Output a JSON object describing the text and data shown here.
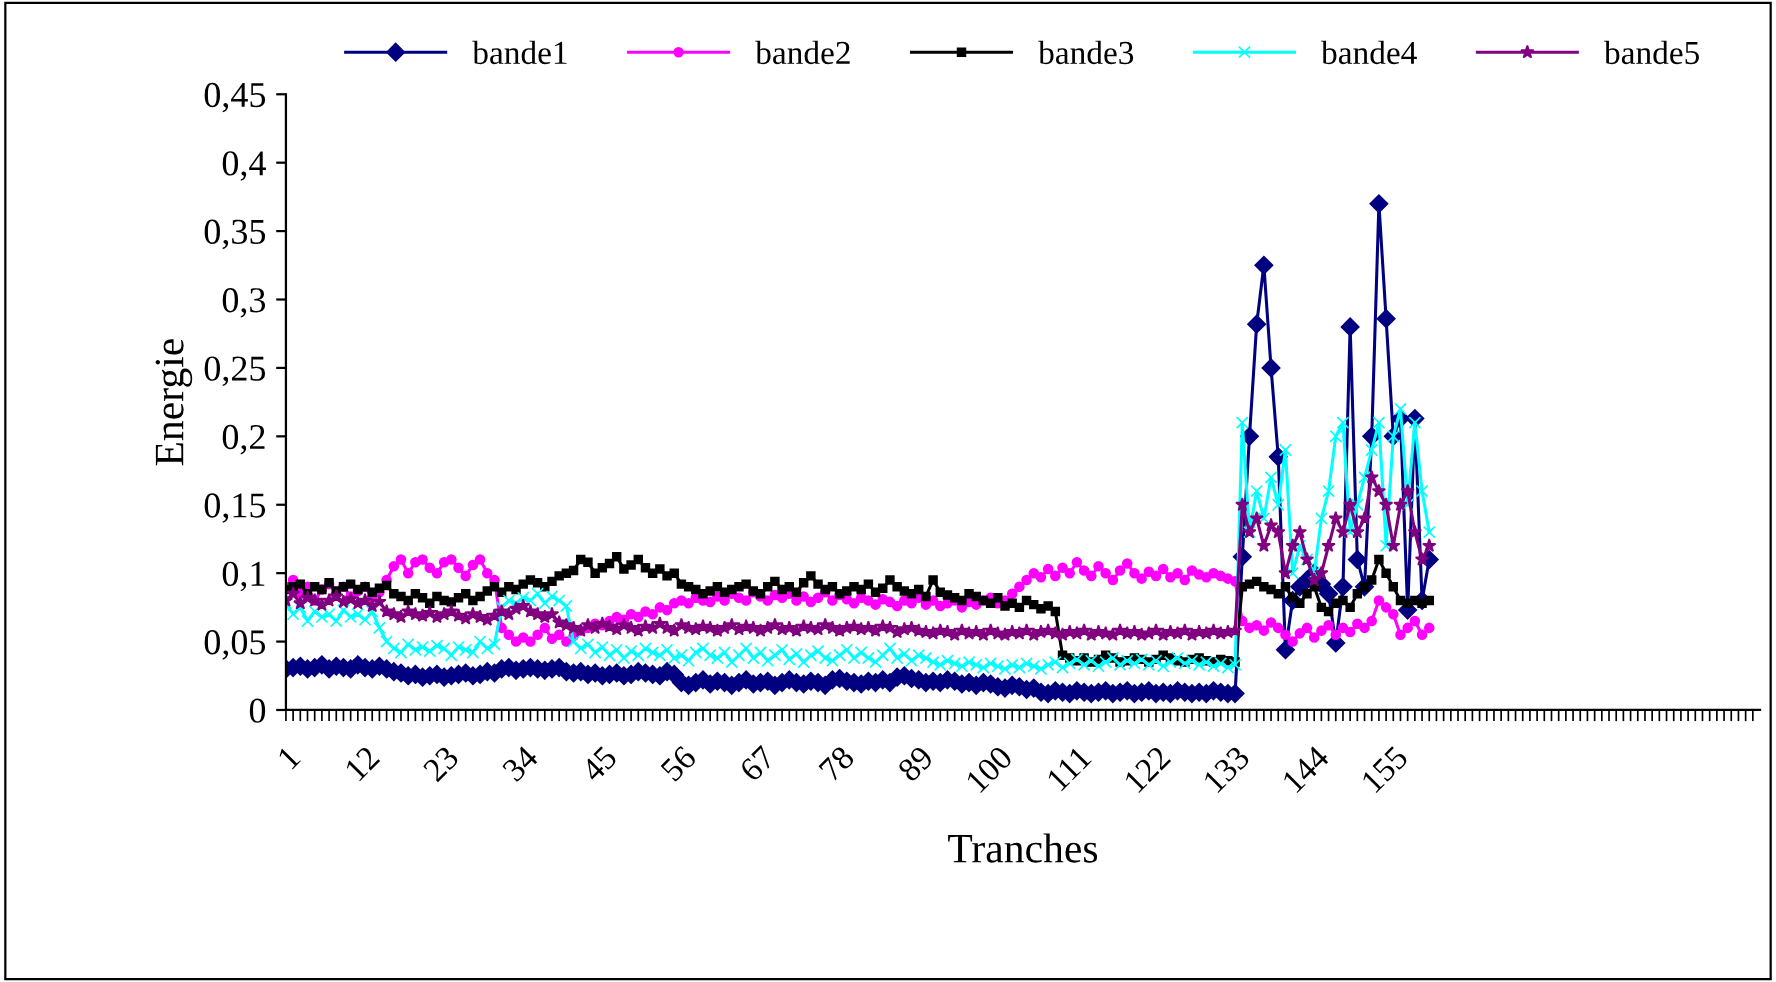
{
  "chart_data": {
    "type": "line",
    "xlabel": "Tranches",
    "ylabel": "Energie",
    "categories": [
      "1",
      null,
      null,
      null,
      null,
      null,
      null,
      null,
      null,
      null,
      null,
      "12",
      null,
      null,
      null,
      null,
      null,
      null,
      null,
      null,
      null,
      null,
      "23",
      null,
      null,
      null,
      null,
      null,
      null,
      null,
      null,
      null,
      null,
      "34",
      null,
      null,
      null,
      null,
      null,
      null,
      null,
      null,
      null,
      null,
      "45",
      null,
      null,
      null,
      null,
      null,
      null,
      null,
      null,
      null,
      null,
      "56",
      null,
      null,
      null,
      null,
      null,
      null,
      null,
      null,
      null,
      null,
      "67",
      null,
      null,
      null,
      null,
      null,
      null,
      null,
      null,
      null,
      null,
      "78",
      null,
      null,
      null,
      null,
      null,
      null,
      null,
      null,
      null,
      null,
      "89",
      null,
      null,
      null,
      null,
      null,
      null,
      null,
      null,
      null,
      null,
      "100",
      null,
      null,
      null,
      null,
      null,
      null,
      null,
      null,
      null,
      null,
      "111",
      null,
      null,
      null,
      null,
      null,
      null,
      null,
      null,
      null,
      null,
      "122",
      null,
      null,
      null,
      null,
      null,
      null,
      null,
      null,
      null,
      null,
      "133",
      null,
      null,
      null,
      null,
      null,
      null,
      null,
      null,
      null,
      null,
      "144",
      null,
      null,
      null,
      null,
      null,
      null,
      null,
      null,
      null,
      null,
      "155",
      null,
      null,
      null,
      null,
      null,
      null,
      null,
      null,
      null,
      null,
      null,
      null,
      null,
      null,
      null,
      null,
      null,
      null,
      null,
      null,
      null,
      null,
      null,
      null,
      null,
      null,
      null,
      null,
      null,
      null,
      null,
      null,
      null,
      null,
      null,
      null,
      null,
      null,
      null,
      null,
      null,
      null,
      null,
      null,
      null,
      null,
      null,
      null,
      null,
      null
    ],
    "ylim": [
      0,
      0.45
    ],
    "yticks": [
      0,
      {
        "value": 0.05,
        "label": "0,05"
      },
      {
        "value": 0.1,
        "label": "0,1"
      },
      {
        "value": 0.15,
        "label": "0,15"
      },
      {
        "value": 0.2,
        "label": "0,2"
      },
      {
        "value": 0.25,
        "label": "0,25"
      },
      {
        "value": 0.3,
        "label": "0,3"
      },
      {
        "value": 0.35,
        "label": "0,35"
      },
      {
        "value": 0.4,
        "label": "0,4"
      },
      {
        "value": 0.45,
        "label": "0,45"
      }
    ],
    "grid": false,
    "legend": "top",
    "series": [
      {
        "name": "bande1",
        "color": "#000080",
        "marker": "diamond",
        "values": [
          0.03,
          0.031,
          0.032,
          0.03,
          0.031,
          0.033,
          0.03,
          0.032,
          0.031,
          0.03,
          0.033,
          0.031,
          0.03,
          0.032,
          0.03,
          0.028,
          0.027,
          0.025,
          0.026,
          0.024,
          0.025,
          0.026,
          0.024,
          0.025,
          0.026,
          0.027,
          0.025,
          0.026,
          0.028,
          0.027,
          0.03,
          0.031,
          0.029,
          0.03,
          0.031,
          0.03,
          0.029,
          0.03,
          0.031,
          0.028,
          0.027,
          0.028,
          0.026,
          0.027,
          0.025,
          0.026,
          0.027,
          0.025,
          0.026,
          0.028,
          0.027,
          0.026,
          0.025,
          0.028,
          0.026,
          0.02,
          0.018,
          0.02,
          0.022,
          0.019,
          0.021,
          0.02,
          0.018,
          0.02,
          0.022,
          0.019,
          0.02,
          0.021,
          0.018,
          0.02,
          0.022,
          0.02,
          0.019,
          0.021,
          0.02,
          0.018,
          0.022,
          0.023,
          0.021,
          0.02,
          0.019,
          0.021,
          0.02,
          0.022,
          0.02,
          0.024,
          0.025,
          0.023,
          0.022,
          0.02,
          0.021,
          0.02,
          0.022,
          0.021,
          0.019,
          0.02,
          0.018,
          0.02,
          0.019,
          0.017,
          0.016,
          0.018,
          0.017,
          0.015,
          0.016,
          0.013,
          0.012,
          0.014,
          0.013,
          0.012,
          0.014,
          0.013,
          0.012,
          0.013,
          0.014,
          0.012,
          0.013,
          0.014,
          0.012,
          0.013,
          0.014,
          0.012,
          0.013,
          0.012,
          0.014,
          0.013,
          0.012,
          0.013,
          0.012,
          0.014,
          0.013,
          0.012,
          0.012,
          0.112,
          0.2,
          0.282,
          0.325,
          0.25,
          0.185,
          0.044,
          0.08,
          0.09,
          0.095,
          0.1,
          0.092,
          0.085,
          0.049,
          0.09,
          0.28,
          0.11,
          0.09,
          0.2,
          0.37,
          0.286,
          0.2,
          0.213,
          0.073,
          0.213,
          0.08,
          0.11,
          null,
          null,
          null,
          null,
          null,
          null,
          null,
          null,
          null,
          null,
          null,
          null,
          null,
          null,
          null,
          null,
          null,
          null,
          null,
          null,
          null,
          null,
          null,
          null,
          null,
          null,
          null,
          null,
          null,
          null,
          null,
          null,
          null,
          null,
          null,
          null,
          null,
          null,
          null,
          null,
          null,
          null,
          null,
          null,
          null
        ]
      },
      {
        "name": "bande2",
        "color": "#ff00ff",
        "marker": "circle",
        "values": [
          0.09,
          0.095,
          0.085,
          0.09,
          0.08,
          0.088,
          0.092,
          0.085,
          0.09,
          0.083,
          0.087,
          0.09,
          0.082,
          0.086,
          0.095,
          0.105,
          0.11,
          0.1,
          0.108,
          0.11,
          0.104,
          0.1,
          0.108,
          0.11,
          0.104,
          0.098,
          0.106,
          0.11,
          0.1,
          0.095,
          0.06,
          0.055,
          0.05,
          0.053,
          0.05,
          0.055,
          0.06,
          0.052,
          0.055,
          0.05,
          0.054,
          0.058,
          0.06,
          0.063,
          0.062,
          0.065,
          0.068,
          0.066,
          0.07,
          0.068,
          0.072,
          0.07,
          0.075,
          0.073,
          0.078,
          0.08,
          0.078,
          0.082,
          0.08,
          0.079,
          0.083,
          0.08,
          0.085,
          0.082,
          0.08,
          0.086,
          0.083,
          0.08,
          0.084,
          0.082,
          0.085,
          0.08,
          0.083,
          0.079,
          0.082,
          0.086,
          0.08,
          0.084,
          0.081,
          0.078,
          0.082,
          0.08,
          0.077,
          0.081,
          0.079,
          0.076,
          0.08,
          0.078,
          0.082,
          0.077,
          0.08,
          0.076,
          0.078,
          0.08,
          0.075,
          0.079,
          0.077,
          0.08,
          0.082,
          0.078,
          0.08,
          0.085,
          0.09,
          0.095,
          0.1,
          0.097,
          0.103,
          0.098,
          0.104,
          0.1,
          0.108,
          0.102,
          0.098,
          0.105,
          0.1,
          0.095,
          0.102,
          0.107,
          0.1,
          0.096,
          0.101,
          0.098,
          0.103,
          0.097,
          0.1,
          0.095,
          0.102,
          0.099,
          0.097,
          0.1,
          0.098,
          0.096,
          0.094,
          0.065,
          0.06,
          0.062,
          0.058,
          0.064,
          0.06,
          0.055,
          0.05,
          0.056,
          0.06,
          0.053,
          0.058,
          0.062,
          0.055,
          0.06,
          0.057,
          0.063,
          0.06,
          0.065,
          0.08,
          0.075,
          0.07,
          0.055,
          0.06,
          0.065,
          0.055,
          0.06,
          null,
          null,
          null,
          null,
          null,
          null,
          null,
          null,
          null,
          null,
          null,
          null,
          null,
          null,
          null,
          null,
          null,
          null,
          null,
          null,
          null,
          null,
          null,
          null,
          null,
          null,
          null,
          null,
          null,
          null,
          null,
          null,
          null,
          null,
          null,
          null,
          null,
          null,
          null,
          null,
          null,
          null,
          null,
          null,
          null
        ]
      },
      {
        "name": "bande3",
        "color": "#000000",
        "marker": "square",
        "values": [
          0.088,
          0.09,
          0.092,
          0.085,
          0.09,
          0.088,
          0.093,
          0.087,
          0.09,
          0.092,
          0.088,
          0.09,
          0.086,
          0.089,
          0.091,
          0.085,
          0.083,
          0.08,
          0.085,
          0.082,
          0.078,
          0.083,
          0.08,
          0.079,
          0.082,
          0.085,
          0.08,
          0.083,
          0.087,
          0.09,
          0.086,
          0.09,
          0.088,
          0.092,
          0.095,
          0.093,
          0.09,
          0.094,
          0.098,
          0.1,
          0.102,
          0.11,
          0.108,
          0.1,
          0.104,
          0.107,
          0.112,
          0.103,
          0.106,
          0.11,
          0.104,
          0.1,
          0.103,
          0.098,
          0.1,
          0.092,
          0.09,
          0.088,
          0.085,
          0.087,
          0.09,
          0.086,
          0.088,
          0.09,
          0.092,
          0.087,
          0.085,
          0.09,
          0.094,
          0.088,
          0.09,
          0.086,
          0.093,
          0.098,
          0.092,
          0.088,
          0.09,
          0.085,
          0.087,
          0.09,
          0.088,
          0.092,
          0.086,
          0.089,
          0.095,
          0.09,
          0.087,
          0.085,
          0.088,
          0.083,
          0.095,
          0.086,
          0.084,
          0.082,
          0.08,
          0.085,
          0.083,
          0.08,
          0.078,
          0.082,
          0.076,
          0.078,
          0.075,
          0.08,
          0.077,
          0.074,
          0.076,
          0.072,
          0.04,
          0.038,
          0.036,
          0.038,
          0.035,
          0.037,
          0.04,
          0.038,
          0.035,
          0.036,
          0.038,
          0.037,
          0.035,
          0.037,
          0.04,
          0.038,
          0.036,
          0.035,
          0.037,
          0.038,
          0.036,
          0.035,
          0.037,
          0.036,
          0.035,
          0.09,
          0.092,
          0.094,
          0.09,
          0.088,
          0.085,
          0.09,
          0.082,
          0.078,
          0.085,
          0.09,
          0.075,
          0.072,
          0.078,
          0.08,
          0.075,
          0.085,
          0.09,
          0.095,
          0.11,
          0.1,
          0.09,
          0.08,
          0.078,
          0.08,
          0.078,
          0.08,
          null,
          null,
          null,
          null,
          null,
          null,
          null,
          null,
          null,
          null,
          null,
          null,
          null,
          null,
          null,
          null,
          null,
          null,
          null,
          null,
          null,
          null,
          null,
          null,
          null,
          null,
          null,
          null,
          null,
          null,
          null,
          null,
          null,
          null,
          null,
          null,
          null,
          null,
          null,
          null,
          null,
          null,
          null,
          null,
          null
        ]
      },
      {
        "name": "bande4",
        "color": "#00ffff",
        "marker": "cross",
        "values": [
          0.078,
          0.07,
          0.075,
          0.065,
          0.072,
          0.068,
          0.07,
          0.065,
          0.073,
          0.068,
          0.07,
          0.066,
          0.072,
          0.06,
          0.05,
          0.045,
          0.042,
          0.048,
          0.044,
          0.046,
          0.043,
          0.047,
          0.045,
          0.04,
          0.046,
          0.044,
          0.042,
          0.05,
          0.045,
          0.048,
          0.075,
          0.08,
          0.078,
          0.082,
          0.08,
          0.085,
          0.078,
          0.083,
          0.08,
          0.076,
          0.05,
          0.045,
          0.048,
          0.042,
          0.046,
          0.04,
          0.044,
          0.038,
          0.043,
          0.04,
          0.045,
          0.042,
          0.04,
          0.044,
          0.038,
          0.04,
          0.036,
          0.042,
          0.045,
          0.04,
          0.038,
          0.042,
          0.035,
          0.04,
          0.045,
          0.038,
          0.042,
          0.036,
          0.04,
          0.044,
          0.037,
          0.041,
          0.035,
          0.04,
          0.043,
          0.038,
          0.036,
          0.04,
          0.044,
          0.038,
          0.042,
          0.038,
          0.035,
          0.04,
          0.045,
          0.038,
          0.041,
          0.036,
          0.04,
          0.038,
          0.035,
          0.033,
          0.036,
          0.034,
          0.032,
          0.035,
          0.033,
          0.031,
          0.034,
          0.032,
          0.03,
          0.033,
          0.031,
          0.034,
          0.032,
          0.03,
          0.033,
          0.035,
          0.031,
          0.034,
          0.037,
          0.033,
          0.036,
          0.032,
          0.035,
          0.038,
          0.033,
          0.036,
          0.034,
          0.037,
          0.033,
          0.036,
          0.032,
          0.035,
          0.038,
          0.034,
          0.036,
          0.033,
          0.035,
          0.032,
          0.034,
          0.031,
          0.033,
          0.21,
          0.13,
          0.16,
          0.14,
          0.17,
          0.15,
          0.19,
          0.1,
          0.12,
          0.11,
          0.1,
          0.14,
          0.16,
          0.2,
          0.21,
          0.13,
          0.15,
          0.17,
          0.19,
          0.21,
          0.12,
          0.2,
          0.22,
          0.15,
          0.21,
          0.16,
          0.13,
          null,
          null,
          null,
          null,
          null,
          null,
          null,
          null,
          null,
          null,
          null,
          null,
          null,
          null,
          null,
          null,
          null,
          null,
          null,
          null,
          null,
          null,
          null,
          null,
          null,
          null,
          null,
          null,
          null,
          null,
          null,
          null,
          null,
          null,
          null,
          null,
          null,
          null,
          null,
          null,
          null,
          null,
          null,
          null,
          null
        ]
      },
      {
        "name": "bande5",
        "color": "#800080",
        "marker": "star",
        "values": [
          0.08,
          0.085,
          0.078,
          0.082,
          0.08,
          0.077,
          0.08,
          0.083,
          0.079,
          0.081,
          0.078,
          0.08,
          0.076,
          0.079,
          0.072,
          0.07,
          0.068,
          0.072,
          0.07,
          0.069,
          0.071,
          0.068,
          0.07,
          0.072,
          0.069,
          0.067,
          0.07,
          0.068,
          0.066,
          0.069,
          0.072,
          0.07,
          0.074,
          0.076,
          0.072,
          0.07,
          0.068,
          0.07,
          0.064,
          0.062,
          0.06,
          0.058,
          0.062,
          0.06,
          0.063,
          0.061,
          0.059,
          0.062,
          0.06,
          0.058,
          0.061,
          0.06,
          0.063,
          0.06,
          0.058,
          0.062,
          0.06,
          0.059,
          0.061,
          0.06,
          0.058,
          0.06,
          0.062,
          0.059,
          0.061,
          0.06,
          0.058,
          0.06,
          0.062,
          0.059,
          0.06,
          0.058,
          0.061,
          0.06,
          0.059,
          0.062,
          0.06,
          0.058,
          0.06,
          0.061,
          0.059,
          0.06,
          0.058,
          0.061,
          0.06,
          0.057,
          0.059,
          0.06,
          0.058,
          0.057,
          0.056,
          0.058,
          0.057,
          0.055,
          0.058,
          0.056,
          0.057,
          0.055,
          0.058,
          0.056,
          0.055,
          0.057,
          0.056,
          0.058,
          0.055,
          0.057,
          0.058,
          0.056,
          0.055,
          0.057,
          0.056,
          0.058,
          0.055,
          0.057,
          0.056,
          0.055,
          0.058,
          0.056,
          0.057,
          0.055,
          0.056,
          0.058,
          0.055,
          0.057,
          0.056,
          0.058,
          0.055,
          0.057,
          0.056,
          0.058,
          0.056,
          0.057,
          0.058,
          0.15,
          0.13,
          0.14,
          0.12,
          0.135,
          0.13,
          0.1,
          0.12,
          0.13,
          0.11,
          0.095,
          0.1,
          0.12,
          0.14,
          0.13,
          0.15,
          0.13,
          0.14,
          0.17,
          0.16,
          0.15,
          0.12,
          0.15,
          0.16,
          0.13,
          0.11,
          0.12,
          null,
          null,
          null,
          null,
          null,
          null,
          null,
          null,
          null,
          null,
          null,
          null,
          null,
          null,
          null,
          null,
          null,
          null,
          null,
          null,
          null,
          null,
          null,
          null,
          null,
          null,
          null,
          null,
          null,
          null,
          null,
          null,
          null,
          null,
          null,
          null,
          null,
          null,
          null,
          null,
          null,
          null,
          null,
          null,
          null
        ]
      }
    ]
  }
}
